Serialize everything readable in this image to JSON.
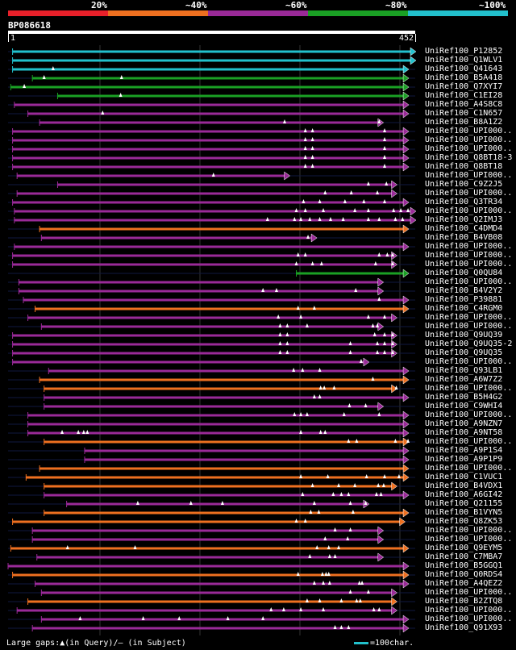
{
  "chart_data": {
    "type": "bar",
    "title": "BP086618",
    "query_length": 452,
    "ruler": {
      "start_label": "1",
      "end_label": "452"
    },
    "identity_scale": [
      {
        "label": "20%",
        "color": "#e8202a"
      },
      {
        "label": "~40%",
        "color": "#ee7020"
      },
      {
        "label": "~60%",
        "color": "#9a2a98"
      },
      {
        "label": "~80%",
        "color": "#1aa024"
      },
      {
        "label": "~100%",
        "color": "#22c0cc"
      }
    ],
    "hits": [
      {
        "name": "UniRef100_P12852",
        "start": 5,
        "end": 452,
        "color": "cyan",
        "ins": []
      },
      {
        "name": "UniRef100_Q1WLV1",
        "start": 5,
        "end": 452,
        "color": "cyan",
        "ins": []
      },
      {
        "name": "UniRef100_Q41643",
        "start": 5,
        "end": 444,
        "color": "cyan",
        "ins": [
          50
        ]
      },
      {
        "name": "UniRef100_B5A418",
        "start": 27,
        "end": 444,
        "color": "green",
        "ins": [
          40,
          126
        ]
      },
      {
        "name": "UniRef100_Q7XYI7",
        "start": 3,
        "end": 444,
        "color": "green",
        "ins": [
          18
        ]
      },
      {
        "name": "UniRef100_C1EI28",
        "start": 55,
        "end": 444,
        "color": "green",
        "ins": [
          125
        ]
      },
      {
        "name": "UniRef100_A4S8C8",
        "start": 7,
        "end": 444,
        "color": "purple",
        "ins": []
      },
      {
        "name": "UniRef100_C1N657",
        "start": 22,
        "end": 444,
        "color": "purple",
        "ins": [
          105
        ]
      },
      {
        "name": "UniRef100_B8A1Z2",
        "start": 35,
        "end": 416,
        "color": "purple",
        "ins": [
          307,
          412
        ]
      },
      {
        "name": "UniRef100_UPI000..",
        "start": 5,
        "end": 444,
        "color": "purple",
        "ins": [
          330,
          338,
          418
        ]
      },
      {
        "name": "UniRef100_UPI000..",
        "start": 5,
        "end": 444,
        "color": "purple",
        "ins": [
          330,
          338,
          418
        ]
      },
      {
        "name": "UniRef100_UPI000..",
        "start": 5,
        "end": 444,
        "color": "purple",
        "ins": [
          330,
          338,
          418
        ]
      },
      {
        "name": "UniRef100_Q8BT18-3",
        "start": 5,
        "end": 444,
        "color": "purple",
        "ins": [
          330,
          338,
          418
        ]
      },
      {
        "name": "UniRef100_Q8BT18",
        "start": 5,
        "end": 444,
        "color": "purple",
        "ins": [
          330,
          338,
          418
        ]
      },
      {
        "name": "UniRef100_UPI000..",
        "start": 10,
        "end": 312,
        "color": "purple",
        "ins": [
          228
        ]
      },
      {
        "name": "UniRef100_C9Z2J5",
        "start": 55,
        "end": 431,
        "color": "purple",
        "ins": [
          400,
          420
        ]
      },
      {
        "name": "UniRef100_UPI000..",
        "start": 10,
        "end": 431,
        "color": "purple",
        "ins": [
          352,
          381,
          410
        ]
      },
      {
        "name": "UniRef100_Q3TR34",
        "start": 5,
        "end": 444,
        "color": "purple",
        "ins": [
          328,
          346,
          374,
          395,
          418
        ]
      },
      {
        "name": "UniRef100_UPI000..",
        "start": 7,
        "end": 452,
        "color": "purple",
        "ins": [
          320,
          330,
          350,
          385,
          400,
          428,
          436,
          444
        ]
      },
      {
        "name": "UniRef100_Q2IMJ3",
        "start": 7,
        "end": 452,
        "color": "purple",
        "ins": [
          288,
          318,
          325,
          335,
          346,
          358,
          372,
          400,
          412,
          430,
          438
        ]
      },
      {
        "name": "UniRef100_C4DMD4",
        "start": 35,
        "end": 444,
        "color": "orange",
        "ins": []
      },
      {
        "name": "UniRef100_B4VB08",
        "start": 37,
        "end": 342,
        "color": "purple",
        "ins": [
          333
        ]
      },
      {
        "name": "UniRef100_UPI000..",
        "start": 7,
        "end": 444,
        "color": "purple",
        "ins": []
      },
      {
        "name": "UniRef100_UPI000..",
        "start": 5,
        "end": 431,
        "color": "purple",
        "ins": [
          322,
          330,
          412,
          421,
          427
        ]
      },
      {
        "name": "UniRef100_UPI000..",
        "start": 5,
        "end": 431,
        "color": "purple",
        "ins": [
          320,
          338,
          348,
          408,
          427
        ]
      },
      {
        "name": "UniRef100_Q0QU84",
        "start": 320,
        "end": 444,
        "color": "green",
        "ins": []
      },
      {
        "name": "UniRef100_UPI000..",
        "start": 12,
        "end": 416,
        "color": "purple",
        "ins": []
      },
      {
        "name": "UniRef100_B4V2Y2",
        "start": 12,
        "end": 416,
        "color": "purple",
        "ins": [
          283,
          298,
          386
        ]
      },
      {
        "name": "UniRef100_P39881",
        "start": 17,
        "end": 444,
        "color": "purple",
        "ins": [
          412
        ]
      },
      {
        "name": "UniRef100_C4RGM0",
        "start": 30,
        "end": 444,
        "color": "orange",
        "ins": [
          322,
          340
        ]
      },
      {
        "name": "UniRef100_UPI000..",
        "start": 22,
        "end": 431,
        "color": "purple",
        "ins": [
          300,
          325,
          400,
          418
        ]
      },
      {
        "name": "UniRef100_UPI000..",
        "start": 37,
        "end": 416,
        "color": "purple",
        "ins": [
          302,
          310,
          332,
          405,
          410
        ]
      },
      {
        "name": "UniRef100_Q9UQ39",
        "start": 5,
        "end": 431,
        "color": "purple",
        "ins": [
          302,
          310,
          407,
          418,
          427
        ]
      },
      {
        "name": "UniRef100_Q9UQ35-2",
        "start": 5,
        "end": 431,
        "color": "purple",
        "ins": [
          302,
          310,
          380,
          410,
          418,
          427
        ]
      },
      {
        "name": "UniRef100_Q9UQ35",
        "start": 5,
        "end": 431,
        "color": "purple",
        "ins": [
          302,
          310,
          380,
          410,
          418,
          427
        ]
      },
      {
        "name": "UniRef100_UPI000..",
        "start": 5,
        "end": 400,
        "color": "purple",
        "ins": [
          392
        ]
      },
      {
        "name": "UniRef100_Q93LB1",
        "start": 45,
        "end": 444,
        "color": "purple",
        "ins": [
          317,
          327,
          346
        ]
      },
      {
        "name": "UniRef100_A6W7Z2",
        "start": 35,
        "end": 444,
        "color": "orange",
        "ins": [
          405
        ]
      },
      {
        "name": "UniRef100_UPI000..",
        "start": 40,
        "end": 431,
        "color": "orange",
        "ins": [
          347,
          351,
          362,
          431
        ]
      },
      {
        "name": "UniRef100_B5H4G2",
        "start": 40,
        "end": 444,
        "color": "purple",
        "ins": [
          340,
          346
        ]
      },
      {
        "name": "UniRef100_C9WHI4",
        "start": 40,
        "end": 416,
        "color": "purple",
        "ins": [
          379,
          397
        ]
      },
      {
        "name": "UniRef100_UPI000..",
        "start": 22,
        "end": 444,
        "color": "purple",
        "ins": [
          318,
          325,
          332,
          373,
          412
        ]
      },
      {
        "name": "UniRef100_A9NZN7",
        "start": 22,
        "end": 444,
        "color": "purple",
        "ins": []
      },
      {
        "name": "UniRef100_A9NT58",
        "start": 22,
        "end": 444,
        "color": "purple",
        "ins": [
          60,
          78,
          84,
          88,
          325,
          347,
          352
        ]
      },
      {
        "name": "UniRef100_UPI000..",
        "start": 40,
        "end": 444,
        "color": "orange",
        "ins": [
          378,
          387,
          430,
          444
        ]
      },
      {
        "name": "UniRef100_A9P1S4",
        "start": 85,
        "end": 444,
        "color": "purple",
        "ins": []
      },
      {
        "name": "UniRef100_A9P1P9",
        "start": 85,
        "end": 444,
        "color": "purple",
        "ins": []
      },
      {
        "name": "UniRef100_UPI000..",
        "start": 35,
        "end": 444,
        "color": "orange",
        "ins": []
      },
      {
        "name": "UniRef100_C1VUC1",
        "start": 20,
        "end": 444,
        "color": "orange",
        "ins": [
          325,
          355,
          398,
          418,
          434
        ]
      },
      {
        "name": "UniRef100_B4VDX1",
        "start": 40,
        "end": 431,
        "color": "orange",
        "ins": [
          338,
          367,
          385,
          411,
          417
        ]
      },
      {
        "name": "UniRef100_A6GI42",
        "start": 40,
        "end": 444,
        "color": "purple",
        "ins": [
          327,
          361,
          370,
          378,
          409,
          414
        ]
      },
      {
        "name": "UniRef100_Q21155",
        "start": 65,
        "end": 400,
        "color": "purple",
        "ins": [
          144,
          203,
          238,
          340,
          380,
          397
        ]
      },
      {
        "name": "UniRef100_B1VYN5",
        "start": 40,
        "end": 444,
        "color": "orange",
        "ins": [
          336,
          345,
          383
        ]
      },
      {
        "name": "UniRef100_Q8ZK53",
        "start": 5,
        "end": 440,
        "color": "orange",
        "ins": [
          320,
          330
        ]
      },
      {
        "name": "UniRef100_UPI000..",
        "start": 27,
        "end": 416,
        "color": "purple",
        "ins": [
          363,
          380
        ]
      },
      {
        "name": "UniRef100_UPI000..",
        "start": 27,
        "end": 416,
        "color": "purple",
        "ins": [
          352,
          377
        ]
      },
      {
        "name": "UniRef100_Q9EYM5",
        "start": 3,
        "end": 444,
        "color": "orange",
        "ins": [
          66,
          141,
          343,
          356,
          367
        ]
      },
      {
        "name": "UniRef100_C7MBA7",
        "start": 32,
        "end": 416,
        "color": "purple",
        "ins": [
          335,
          357,
          363
        ]
      },
      {
        "name": "UniRef100_B5GGQ1",
        "start": 0,
        "end": 444,
        "color": "purple",
        "ins": []
      },
      {
        "name": "UniRef100_Q0RDS4",
        "start": 5,
        "end": 444,
        "color": "orange",
        "ins": [
          322,
          349,
          353,
          356
        ]
      },
      {
        "name": "UniRef100_A4QEZ2",
        "start": 30,
        "end": 444,
        "color": "purple",
        "ins": [
          340,
          350,
          357,
          390,
          393
        ]
      },
      {
        "name": "UniRef100_UPI000..",
        "start": 37,
        "end": 431,
        "color": "purple",
        "ins": [
          380,
          400
        ]
      },
      {
        "name": "UniRef100_B2ZTQ8",
        "start": 22,
        "end": 431,
        "color": "orange",
        "ins": [
          332,
          346,
          370,
          387,
          391
        ]
      },
      {
        "name": "UniRef100_UPI000..",
        "start": 10,
        "end": 431,
        "color": "purple",
        "ins": [
          292,
          306,
          325,
          350,
          406,
          412
        ]
      },
      {
        "name": "UniRef100_UPI000..",
        "start": 37,
        "end": 444,
        "color": "purple",
        "ins": [
          80,
          150,
          190,
          244,
          283
        ]
      },
      {
        "name": "UniRef100_Q91X93",
        "start": 27,
        "end": 444,
        "color": "purple",
        "ins": [
          363,
          370,
          378
        ]
      }
    ],
    "footer": {
      "note": "Large gaps:▲(in Query)/— (in Subject)",
      "legend": "=100char."
    },
    "color_map": {
      "cyan": "#22c0cc",
      "green": "#1aa024",
      "purple": "#9a2a98",
      "orange": "#ee7020",
      "red": "#e8202a"
    }
  }
}
